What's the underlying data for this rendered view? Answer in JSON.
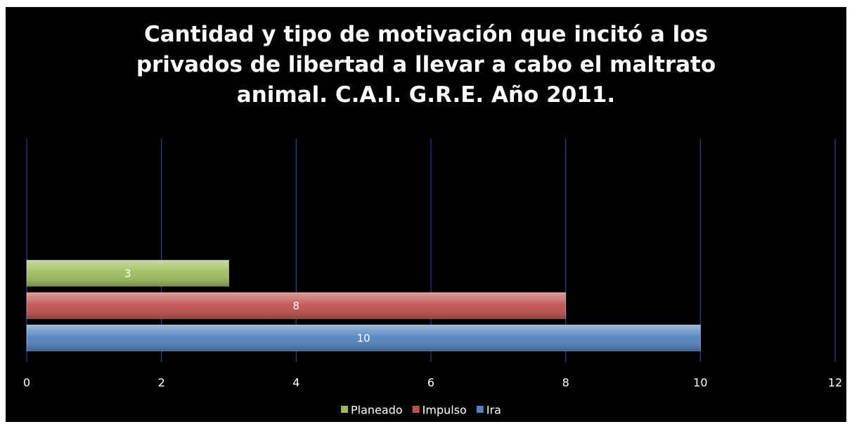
{
  "chart_data": {
    "type": "hbar",
    "title": "Cantidad y tipo de motivación que incitó a los privados de libertad a llevar a cabo el maltrato animal. C.A.I. G.R.E. Año 2011.",
    "categories": [
      null
    ],
    "series": [
      {
        "name": "Planeado",
        "color": "#9bbb59",
        "values": [
          3
        ]
      },
      {
        "name": "Impulso",
        "color": "#c0504d",
        "values": [
          8
        ]
      },
      {
        "name": "Ira",
        "color": "#4f81bd",
        "values": [
          10
        ]
      }
    ],
    "xlim": [
      0,
      12
    ],
    "xticks": [
      0,
      2,
      4,
      6,
      8,
      10,
      12
    ],
    "grid": true,
    "legend": "bottom"
  }
}
